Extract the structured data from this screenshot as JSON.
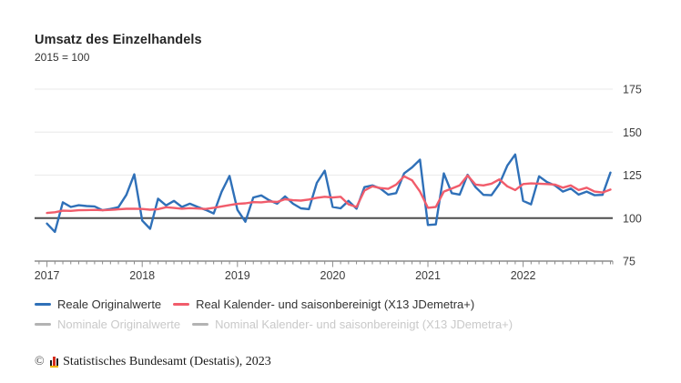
{
  "header": {
    "title": "Umsatz des Einzelhandels",
    "subtitle": "2015 = 100"
  },
  "legend": {
    "items": [
      {
        "label": "Reale Originalwerte",
        "color": "#2f70b8",
        "active": true
      },
      {
        "label": "Real Kalender- und saisonbereinigt (X13 JDemetra+)",
        "color": "#f15c6b",
        "active": true
      },
      {
        "label": "Nominale Originalwerte",
        "color": "#b3b3b3",
        "active": false
      },
      {
        "label": "Nominal Kalender- und saisonbereinigt (X13 JDemetra+)",
        "color": "#b3b3b3",
        "active": false
      }
    ]
  },
  "footer": {
    "copyright_symbol": "©",
    "copyright": "Statistisches Bundesamt (Destatis), 2023"
  },
  "chart_data": {
    "type": "line",
    "title": "Umsatz des Einzelhandels",
    "subtitle": "2015 = 100",
    "x_years": [
      "2017",
      "2018",
      "2019",
      "2020",
      "2021",
      "2022"
    ],
    "months_per_year": 12,
    "ylim": [
      75,
      175
    ],
    "y_ticks": [
      75,
      100,
      125,
      150,
      175
    ],
    "y_axis_side": "right",
    "baseline_value": 100,
    "grid": "horizontal",
    "legend_position": "bottom",
    "colors": {
      "grid": "#ededed",
      "baseline": "#4d4d4d",
      "axis": "#8c8c8c",
      "tick_label": "#3c3c3c"
    },
    "series": [
      {
        "name": "Reale Originalwerte",
        "color": "#2f70b8",
        "values": [
          96.8,
          92.0,
          109.2,
          106.5,
          107.5,
          107.0,
          106.8,
          104.6,
          105.3,
          106.4,
          113.5,
          125.5,
          98.6,
          93.8,
          111.3,
          107.4,
          110.0,
          106.5,
          108.4,
          106.5,
          104.8,
          102.7,
          115.3,
          124.5,
          104.8,
          97.9,
          112.0,
          113.2,
          110.4,
          108.4,
          112.6,
          108.4,
          105.7,
          105.2,
          120.5,
          127.6,
          106.5,
          105.7,
          110.0,
          105.5,
          118.0,
          119.0,
          117.2,
          113.7,
          114.5,
          126.0,
          129.5,
          134.0,
          96.0,
          96.3,
          126.0,
          114.5,
          113.7,
          125.2,
          118.0,
          113.5,
          113.3,
          119.8,
          130.5,
          137.0,
          110.0,
          108.0,
          124.3,
          121.0,
          119.0,
          115.4,
          117.2,
          113.7,
          115.4,
          113.3,
          113.5,
          126.5
        ]
      },
      {
        "name": "Real Kalender- und saisonbereinigt (X13 JDemetra+)",
        "color": "#f15c6b",
        "values": [
          103.0,
          103.4,
          104.3,
          104.2,
          104.6,
          104.7,
          104.8,
          104.6,
          104.8,
          105.1,
          105.4,
          105.5,
          105.3,
          104.9,
          105.2,
          106.3,
          105.9,
          105.5,
          105.8,
          105.6,
          105.3,
          106.0,
          106.8,
          107.6,
          108.3,
          108.6,
          109.3,
          109.2,
          109.7,
          109.4,
          111.0,
          110.4,
          110.2,
          110.8,
          111.8,
          112.4,
          112.0,
          112.4,
          108.0,
          106.5,
          116.0,
          118.5,
          117.5,
          117.0,
          119.5,
          124.3,
          122.0,
          115.4,
          106.0,
          106.5,
          115.4,
          117.2,
          119.0,
          124.8,
          119.5,
          119.0,
          120.0,
          122.5,
          118.5,
          116.3,
          119.8,
          120.2,
          120.0,
          119.8,
          119.5,
          117.7,
          119.0,
          116.3,
          117.7,
          115.4,
          114.9,
          116.6
        ]
      }
    ]
  }
}
